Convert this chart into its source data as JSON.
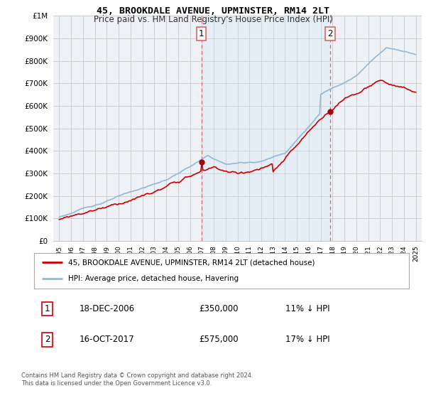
{
  "title": "45, BROOKDALE AVENUE, UPMINSTER, RM14 2LT",
  "subtitle": "Price paid vs. HM Land Registry's House Price Index (HPI)",
  "ytick_values": [
    0,
    100000,
    200000,
    300000,
    400000,
    500000,
    600000,
    700000,
    800000,
    900000,
    1000000
  ],
  "ylim": [
    0,
    1000000
  ],
  "sale1_price": 350000,
  "sale1_x": 2006.96,
  "sale2_price": 575000,
  "sale2_x": 2017.79,
  "hpi_color": "#90b8d8",
  "hpi_fill_color": "#d0e4f0",
  "price_color": "#cc0000",
  "marker_color": "#aa0000",
  "vline_color": "#dd6666",
  "legend_label1": "45, BROOKDALE AVENUE, UPMINSTER, RM14 2LT (detached house)",
  "legend_label2": "HPI: Average price, detached house, Havering",
  "table_row1": [
    "1",
    "18-DEC-2006",
    "£350,000",
    "11% ↓ HPI"
  ],
  "table_row2": [
    "2",
    "16-OCT-2017",
    "£575,000",
    "17% ↓ HPI"
  ],
  "footer": "Contains HM Land Registry data © Crown copyright and database right 2024.\nThis data is licensed under the Open Government Licence v3.0.",
  "background_color": "#ffffff",
  "plot_bg_color": "#eef2f7"
}
